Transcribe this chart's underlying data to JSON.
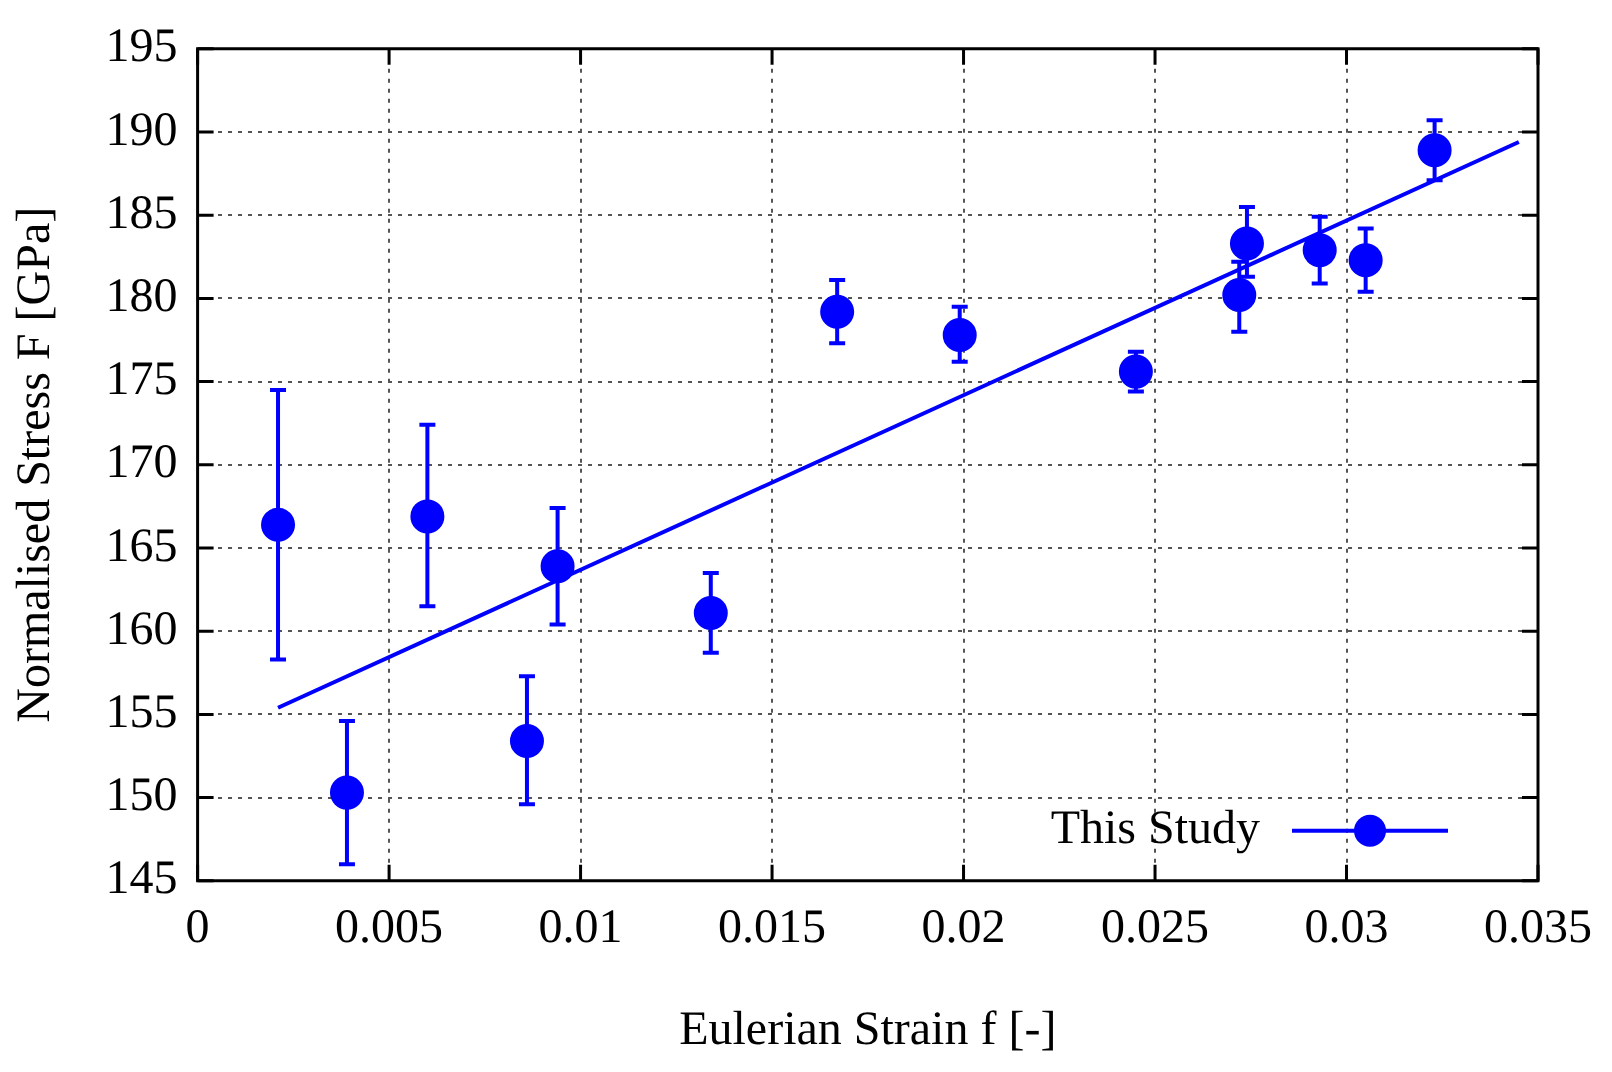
{
  "chart_data": {
    "type": "scatter",
    "xlabel": "Eulerian Strain f [-]",
    "ylabel": "Normalised Stress F [GPa]",
    "xlim": [
      0,
      0.035
    ],
    "xticks": [
      0,
      0.005,
      0.01,
      0.015,
      0.02,
      0.025,
      0.03,
      0.035
    ],
    "ylim": [
      145,
      195
    ],
    "yticks": [
      145,
      150,
      155,
      160,
      165,
      170,
      175,
      180,
      185,
      190,
      195
    ],
    "grid": true,
    "legend": "bottom right",
    "series": [
      {
        "name": "This Study",
        "color": "#0000ff",
        "marker": "circle",
        "x": [
          0.0021,
          0.0039,
          0.006,
          0.0086,
          0.0094,
          0.0134,
          0.0167,
          0.0199,
          0.0245,
          0.0272,
          0.0274,
          0.0293,
          0.0305,
          0.0323
        ],
        "values": [
          166.4,
          150.3,
          166.9,
          153.4,
          163.9,
          161.1,
          179.2,
          177.8,
          175.6,
          180.2,
          183.3,
          182.9,
          182.3,
          188.9
        ],
        "errors": [
          [
            158.3,
            174.5
          ],
          [
            146.0,
            154.6
          ],
          [
            161.5,
            172.4
          ],
          [
            149.6,
            157.3
          ],
          [
            160.4,
            167.4
          ],
          [
            158.7,
            163.5
          ],
          [
            177.3,
            181.1
          ],
          [
            176.2,
            179.5
          ],
          [
            174.4,
            176.8
          ],
          [
            178.0,
            182.2
          ],
          [
            181.3,
            185.5
          ],
          [
            180.9,
            184.9
          ],
          [
            180.4,
            184.2
          ],
          [
            187.1,
            190.7
          ]
        ]
      },
      {
        "type": "line",
        "color": "#0000ff",
        "marker": "none",
        "line_style": "solid",
        "x": [
          0.0021,
          0.0345
        ],
        "values": [
          155.4,
          189.4
        ]
      }
    ]
  }
}
